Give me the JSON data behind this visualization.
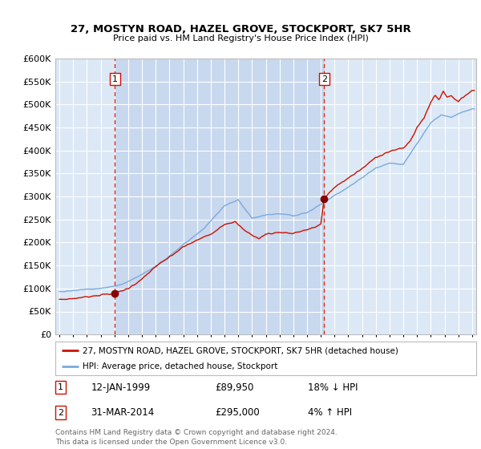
{
  "title": "27, MOSTYN ROAD, HAZEL GROVE, STOCKPORT, SK7 5HR",
  "subtitle": "Price paid vs. HM Land Registry's House Price Index (HPI)",
  "background_color": "#ffffff",
  "plot_bg_color": "#dce8f5",
  "shaded_region_color": "#ccdcef",
  "grid_color": "#ffffff",
  "sale1_date": 1999.04,
  "sale1_price": 89950,
  "sale1_label": "1",
  "sale2_date": 2014.25,
  "sale2_price": 295000,
  "sale2_label": "2",
  "legend_line1": "27, MOSTYN ROAD, HAZEL GROVE, STOCKPORT, SK7 5HR (detached house)",
  "legend_line2": "HPI: Average price, detached house, Stockport",
  "annotation1_date": "12-JAN-1999",
  "annotation1_price": "£89,950",
  "annotation1_hpi": "18% ↓ HPI",
  "annotation2_date": "31-MAR-2014",
  "annotation2_price": "£295,000",
  "annotation2_hpi": "4% ↑ HPI",
  "footer": "Contains HM Land Registry data © Crown copyright and database right 2024.\nThis data is licensed under the Open Government Licence v3.0.",
  "hpi_color": "#7aaadd",
  "price_color": "#cc1100",
  "vline_color": "#dd2200",
  "ylim_min": 0,
  "ylim_max": 600000,
  "xlim_min": 1994.7,
  "xlim_max": 2025.3
}
